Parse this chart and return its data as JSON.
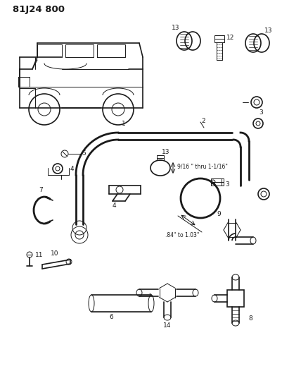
{
  "title": "81J24 800",
  "bg_color": "#ffffff",
  "line_color": "#1a1a1a",
  "dim_text_1": "9/16 \" thru 1-1/16\"",
  "dim_text_2": ".84\" to 1.03\"",
  "parts": [
    "1",
    "2",
    "3",
    "4",
    "5",
    "6",
    "7",
    "8",
    "9",
    "10",
    "11",
    "12",
    "13",
    "14"
  ]
}
